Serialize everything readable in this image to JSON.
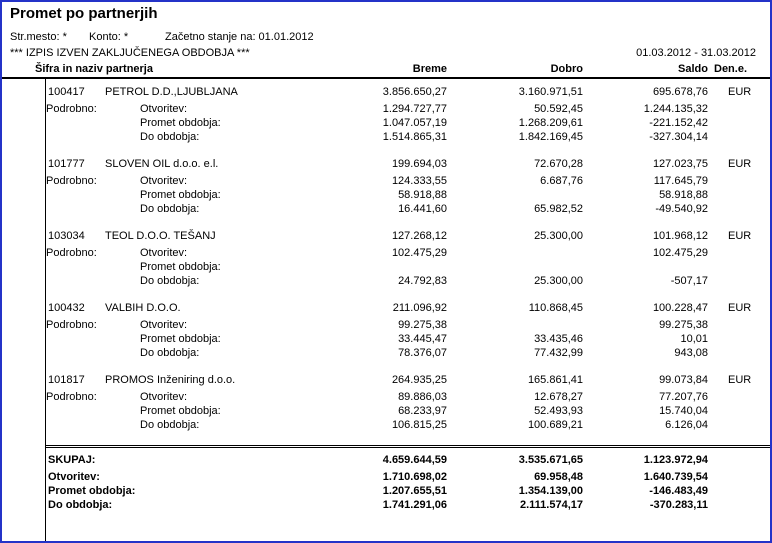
{
  "report": {
    "title": "Promet po partnerjih",
    "str_mesto": "Str.mesto: *",
    "konto": "Konto: *",
    "zacetno_stanje": "Začetno stanje na: 01.01.2012",
    "notice": "*** IZPIS IZVEN ZAKLJUČENEGA OBDOBJA ***",
    "period": "01.03.2012 -  31.03.2012"
  },
  "columns": {
    "partner": "Šifra in naziv partnerja",
    "breme": "Breme",
    "dobro": "Dobro",
    "saldo": "Saldo",
    "currency": "Den.e."
  },
  "labels": {
    "podrobno": "Podrobno:",
    "otvoritev": "Otvoritev:",
    "promet_obdobja": "Promet obdobja:",
    "do_obdobja": "Do obdobja:",
    "skupaj": "SKUPAJ:"
  },
  "partners": [
    {
      "code": "100417",
      "name": "PETROL D.D.,LJUBLJANA",
      "currency": "EUR",
      "summary": {
        "breme": "3.856.650,27",
        "dobro": "3.160.971,51",
        "saldo": "695.678,76"
      },
      "otvoritev": {
        "breme": "1.294.727,77",
        "dobro": "50.592,45",
        "saldo": "1.244.135,32"
      },
      "promet_obdobja": {
        "breme": "1.047.057,19",
        "dobro": "1.268.209,61",
        "saldo": "-221.152,42"
      },
      "do_obdobja": {
        "breme": "1.514.865,31",
        "dobro": "1.842.169,45",
        "saldo": "-327.304,14"
      }
    },
    {
      "code": "101777",
      "name": "SLOVEN OIL d.o.o. e.l.",
      "currency": "EUR",
      "summary": {
        "breme": "199.694,03",
        "dobro": "72.670,28",
        "saldo": "127.023,75"
      },
      "otvoritev": {
        "breme": "124.333,55",
        "dobro": "6.687,76",
        "saldo": "117.645,79"
      },
      "promet_obdobja": {
        "breme": "58.918,88",
        "dobro": "",
        "saldo": "58.918,88"
      },
      "do_obdobja": {
        "breme": "16.441,60",
        "dobro": "65.982,52",
        "saldo": "-49.540,92"
      }
    },
    {
      "code": "103034",
      "name": "TEOL D.O.O. TEŠANJ",
      "currency": "EUR",
      "summary": {
        "breme": "127.268,12",
        "dobro": "25.300,00",
        "saldo": "101.968,12"
      },
      "otvoritev": {
        "breme": "102.475,29",
        "dobro": "",
        "saldo": "102.475,29"
      },
      "promet_obdobja": {
        "breme": "",
        "dobro": "",
        "saldo": ""
      },
      "do_obdobja": {
        "breme": "24.792,83",
        "dobro": "25.300,00",
        "saldo": "-507,17"
      }
    },
    {
      "code": "100432",
      "name": "VALBIH D.O.O.",
      "currency": "EUR",
      "summary": {
        "breme": "211.096,92",
        "dobro": "110.868,45",
        "saldo": "100.228,47"
      },
      "otvoritev": {
        "breme": "99.275,38",
        "dobro": "",
        "saldo": "99.275,38"
      },
      "promet_obdobja": {
        "breme": "33.445,47",
        "dobro": "33.435,46",
        "saldo": "10,01"
      },
      "do_obdobja": {
        "breme": "78.376,07",
        "dobro": "77.432,99",
        "saldo": "943,08"
      }
    },
    {
      "code": "101817",
      "name": "PROMOS Inženiring d.o.o.",
      "currency": "EUR",
      "summary": {
        "breme": "264.935,25",
        "dobro": "165.861,41",
        "saldo": "99.073,84"
      },
      "otvoritev": {
        "breme": "89.886,03",
        "dobro": "12.678,27",
        "saldo": "77.207,76"
      },
      "promet_obdobja": {
        "breme": "68.233,97",
        "dobro": "52.493,93",
        "saldo": "15.740,04"
      },
      "do_obdobja": {
        "breme": "106.815,25",
        "dobro": "100.689,21",
        "saldo": "6.126,04"
      }
    }
  ],
  "totals": {
    "skupaj": {
      "breme": "4.659.644,59",
      "dobro": "3.535.671,65",
      "saldo": "1.123.972,94"
    },
    "otvoritev": {
      "breme": "1.710.698,02",
      "dobro": "69.958,48",
      "saldo": "1.640.739,54"
    },
    "promet_obdobja": {
      "breme": "1.207.655,51",
      "dobro": "1.354.139,00",
      "saldo": "-146.483,49"
    },
    "do_obdobja": {
      "breme": "1.741.291,06",
      "dobro": "2.111.574,17",
      "saldo": "-370.283,11"
    }
  }
}
